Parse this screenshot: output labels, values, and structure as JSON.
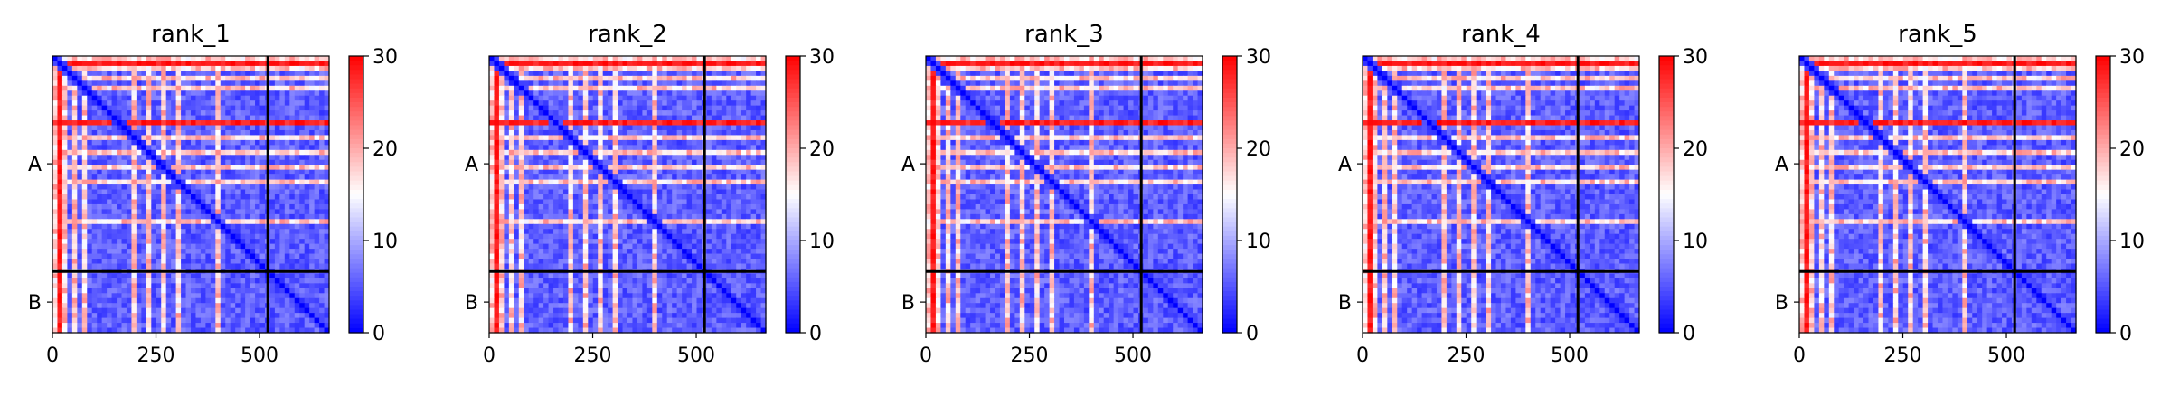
{
  "chart_data": {
    "type": "heatmap",
    "colormap": {
      "name": "bwr",
      "low": "#0000ff",
      "mid": "#ffffff",
      "high": "#ff0000"
    },
    "value_range": [
      0,
      30
    ],
    "colorbar_ticks": [
      0,
      10,
      20,
      30
    ],
    "x_ticks": [
      0,
      250,
      500
    ],
    "n_residues": 668,
    "chains": [
      {
        "name": "A",
        "start": 0,
        "end": 520
      },
      {
        "name": "B",
        "start": 520,
        "end": 668
      }
    ],
    "panels": [
      {
        "title": "rank_1"
      },
      {
        "title": "rank_2"
      },
      {
        "title": "rank_3"
      },
      {
        "title": "rank_4"
      },
      {
        "title": "rank_5"
      }
    ]
  }
}
